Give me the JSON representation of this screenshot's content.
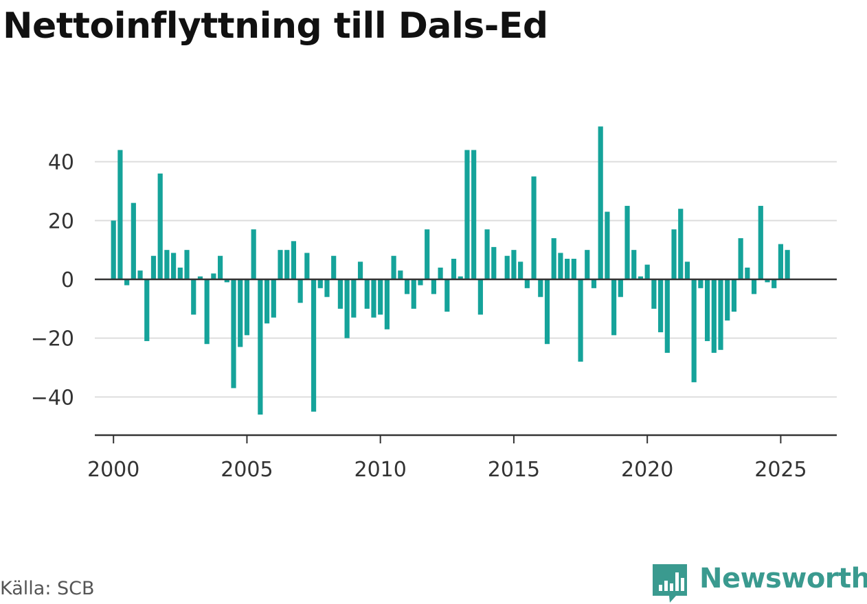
{
  "title": "Nettoinflyttning till Dals-Ed",
  "source": "Källa: SCB",
  "brand": {
    "name": "Newsworthy",
    "icon": "bar-chart-speech-bubble-icon",
    "color": "#3a9a8f"
  },
  "colors": {
    "bar": "#15a39a",
    "axis": "#333333",
    "grid": "#dddddd",
    "text": "#333333"
  },
  "chart_data": {
    "type": "bar",
    "title": "Nettoinflyttning till Dals-Ed",
    "xlabel": "",
    "ylabel": "",
    "x_ticks": [
      2000,
      2005,
      2010,
      2015,
      2020,
      2025
    ],
    "x_tick_labels": [
      "2000",
      "2005",
      "2010",
      "2015",
      "2020",
      "2025"
    ],
    "y_ticks": [
      -40,
      -20,
      0,
      20,
      40
    ],
    "y_tick_labels": [
      "−40",
      "−20",
      "0",
      "20",
      "40"
    ],
    "ylim": [
      -53,
      53
    ],
    "xlim": [
      1999.3,
      2027.1
    ],
    "grid": true,
    "legend": "none",
    "x": [
      2000.0,
      2000.25,
      2000.5,
      2000.75,
      2001.0,
      2001.25,
      2001.5,
      2001.75,
      2002.0,
      2002.25,
      2002.5,
      2002.75,
      2003.0,
      2003.25,
      2003.5,
      2003.75,
      2004.0,
      2004.25,
      2004.5,
      2004.75,
      2005.0,
      2005.25,
      2005.5,
      2005.75,
      2006.0,
      2006.25,
      2006.5,
      2006.75,
      2007.0,
      2007.25,
      2007.5,
      2007.75,
      2008.0,
      2008.25,
      2008.5,
      2008.75,
      2009.0,
      2009.25,
      2009.5,
      2009.75,
      2010.0,
      2010.25,
      2010.5,
      2010.75,
      2011.0,
      2011.25,
      2011.5,
      2011.75,
      2012.0,
      2012.25,
      2012.5,
      2012.75,
      2013.0,
      2013.25,
      2013.5,
      2013.75,
      2014.0,
      2014.25,
      2014.5,
      2014.75,
      2015.0,
      2015.25,
      2015.5,
      2015.75,
      2016.0,
      2016.25,
      2016.5,
      2016.75,
      2017.0,
      2017.25,
      2017.5,
      2017.75,
      2018.0,
      2018.25,
      2018.5,
      2018.75,
      2019.0,
      2019.25,
      2019.5,
      2019.75,
      2020.0,
      2020.25,
      2020.5,
      2020.75,
      2021.0,
      2021.25,
      2021.5,
      2021.75,
      2022.0,
      2022.25,
      2022.5,
      2022.75,
      2023.0,
      2023.25,
      2023.5,
      2023.75,
      2024.0,
      2024.25,
      2024.5,
      2024.75,
      2025.0,
      2025.25
    ],
    "values": [
      20,
      44,
      -2,
      26,
      3,
      -21,
      8,
      36,
      10,
      9,
      4,
      10,
      -12,
      1,
      -22,
      2,
      8,
      -1,
      -37,
      -23,
      -19,
      17,
      -46,
      -15,
      -13,
      10,
      10,
      13,
      -8,
      9,
      -45,
      -3,
      -6,
      8,
      -10,
      -20,
      -13,
      6,
      -10,
      -13,
      -12,
      -17,
      8,
      3,
      -5,
      -10,
      -2,
      17,
      -5,
      4,
      -11,
      7,
      1,
      44,
      44,
      -12,
      17,
      11,
      0,
      8,
      10,
      6,
      -3,
      35,
      -6,
      -22,
      14,
      9,
      7,
      7,
      -28,
      10,
      -3,
      52,
      23,
      -19,
      -6,
      25,
      10,
      1,
      5,
      -10,
      -18,
      -25,
      17,
      24,
      6,
      -35,
      -3,
      -21,
      -25,
      -24,
      -14,
      -11,
      14,
      4,
      -5,
      25,
      -1,
      -3,
      12,
      10
    ]
  }
}
